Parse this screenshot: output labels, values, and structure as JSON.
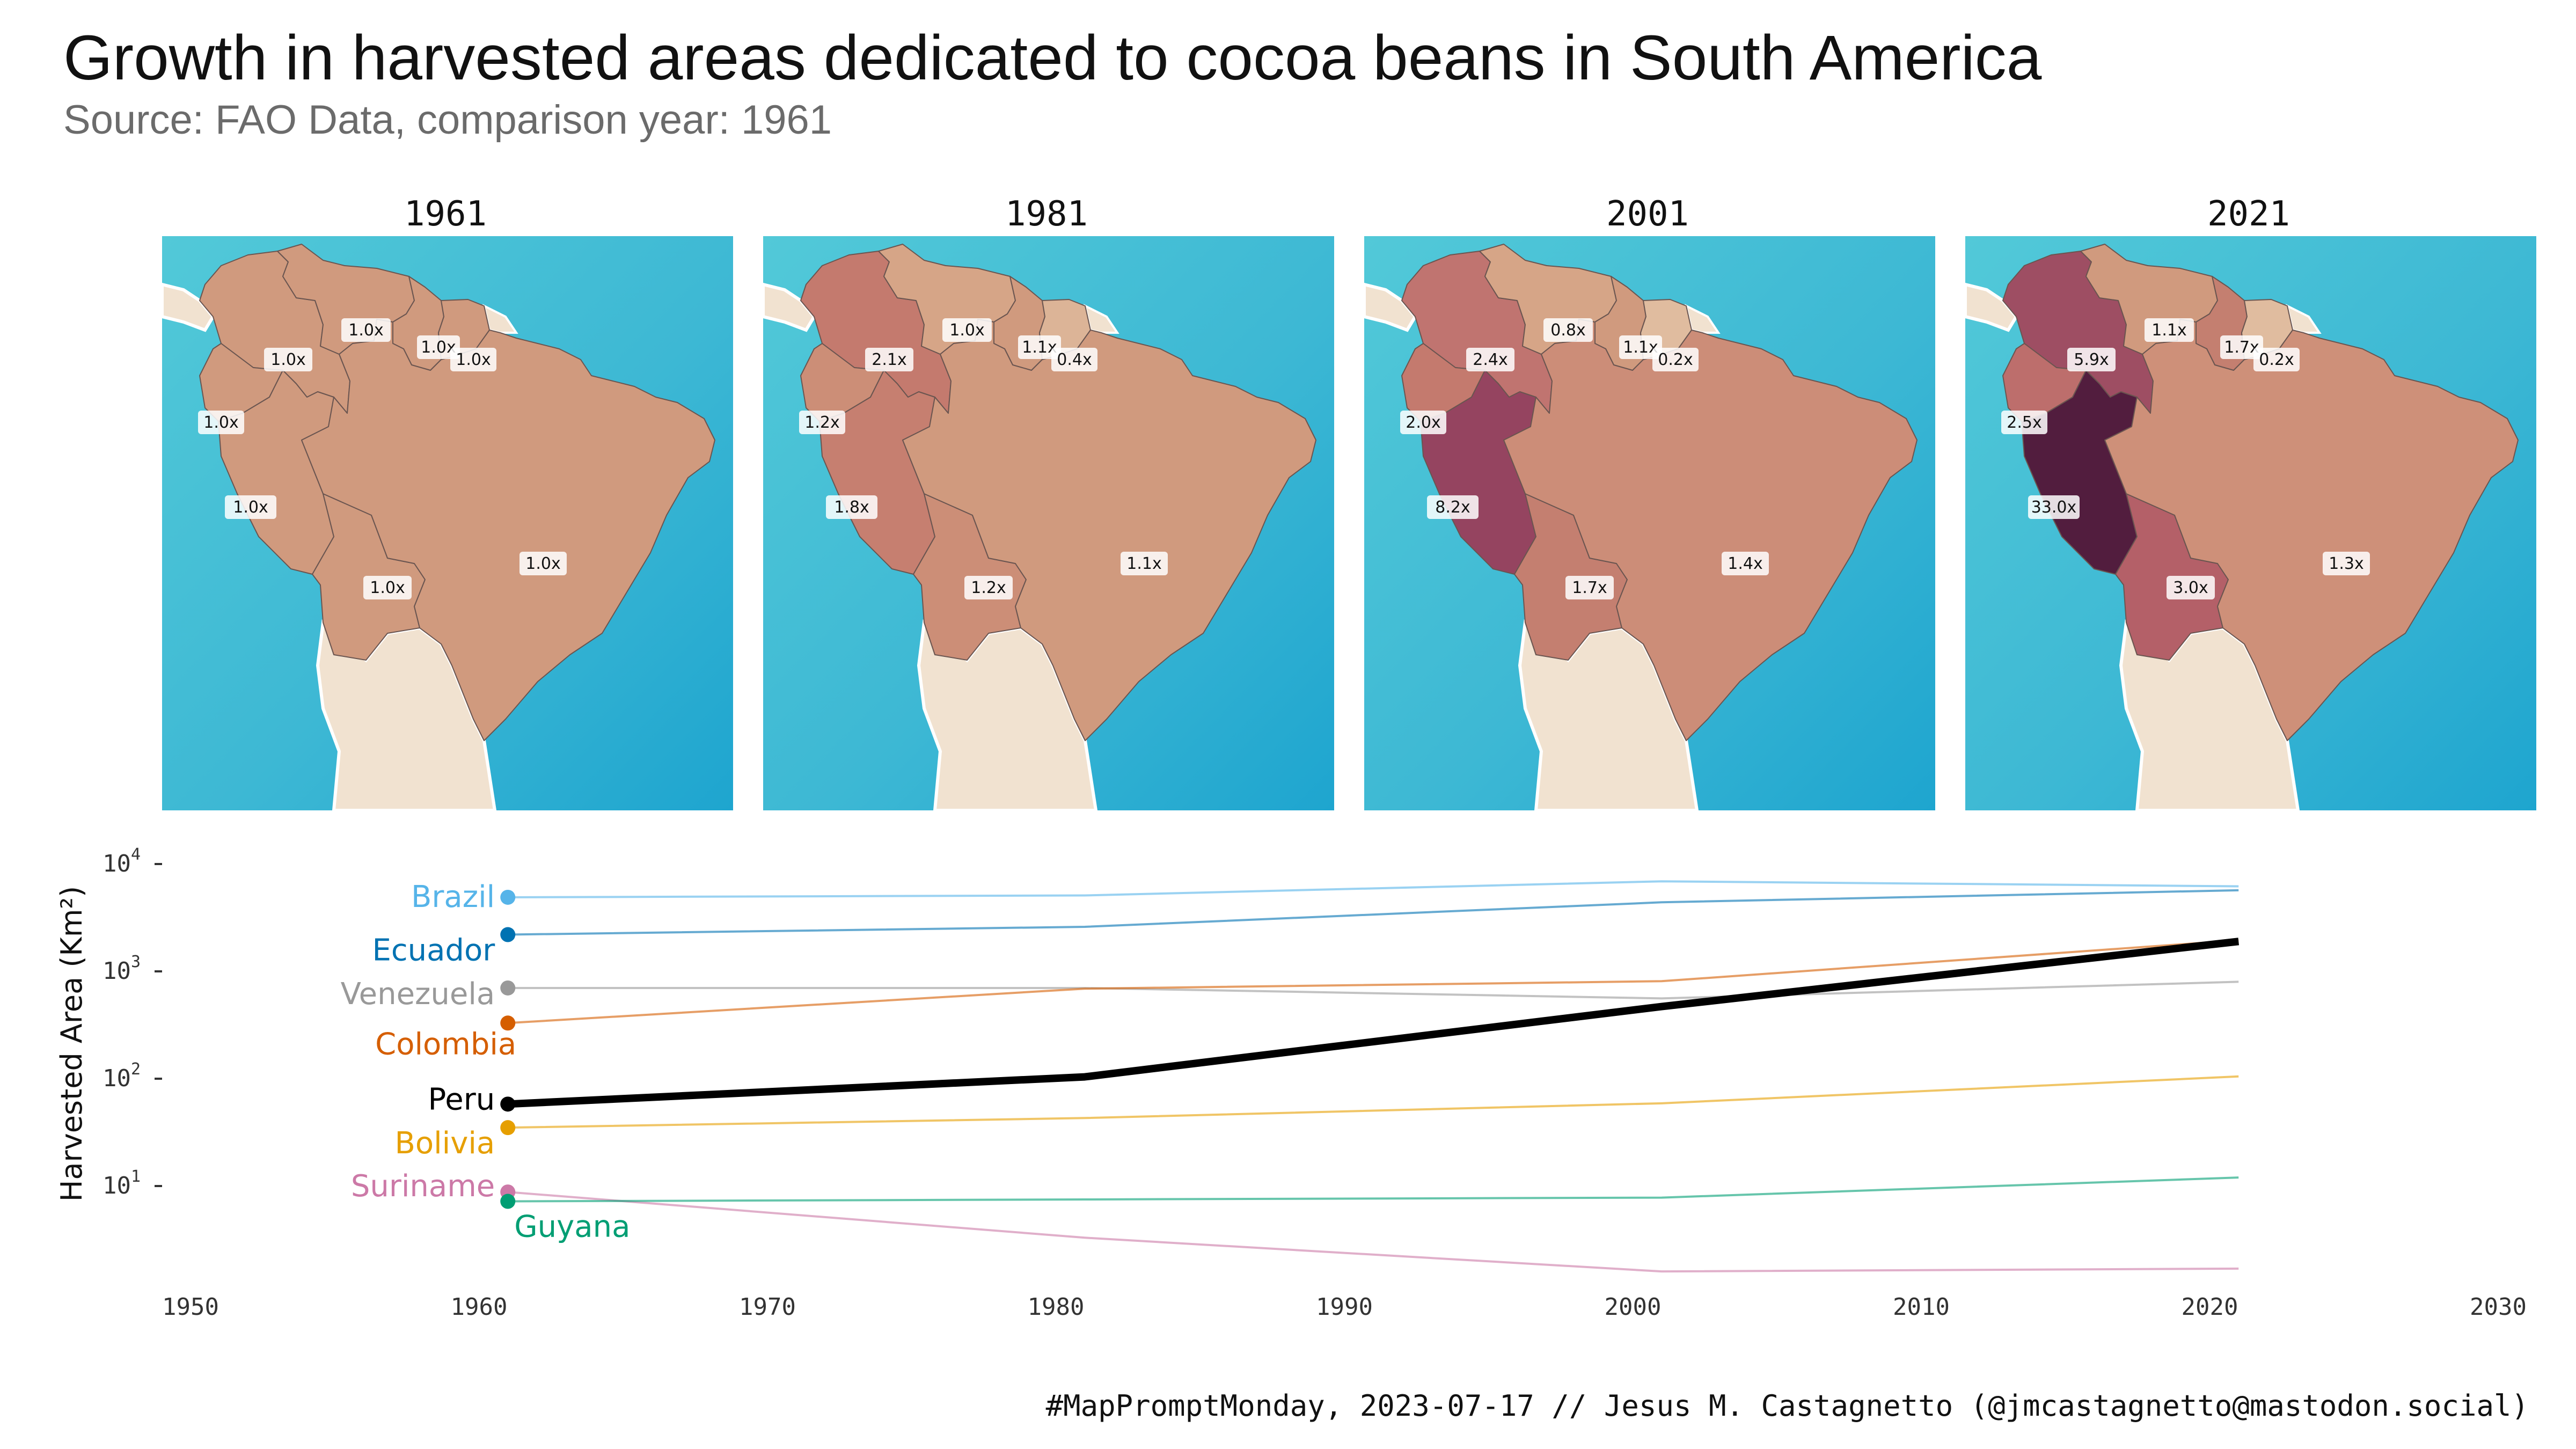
{
  "title": "Growth in harvested areas dedicated to cocoa beans in South America",
  "subtitle": "Source: FAO Data, comparison year: 1961",
  "caption": "#MapPromptMonday, 2023-07-17 // Jesus M. Castagnetto (@jmcastagnetto@mastodon.social)",
  "maps": [
    {
      "year": "1961",
      "regions": {
        "colombia": "1.0x",
        "venezuela": "1.0x",
        "guyana": "1.0x",
        "suriname": "1.0x",
        "ecuador": "1.0x",
        "peru": "1.0x",
        "bolivia": "1.0x",
        "brazil": "1.0x"
      },
      "fill": {
        "colombia": "#d09a7e",
        "venezuela": "#d09a7e",
        "guyana": "#d09a7e",
        "suriname": "#d09a7e",
        "ecuador": "#d09a7e",
        "peru": "#d09a7e",
        "bolivia": "#d09a7e",
        "brazil": "#d09a7e"
      }
    },
    {
      "year": "1981",
      "regions": {
        "colombia": "2.1x",
        "venezuela": "1.0x",
        "guyana": "1.1x",
        "suriname": "0.4x",
        "ecuador": "1.2x",
        "peru": "1.8x",
        "bolivia": "1.2x",
        "brazil": "1.1x"
      },
      "fill": {
        "colombia": "#c47a6e",
        "venezuela": "#d6a587",
        "guyana": "#d09a7e",
        "suriname": "#dcb497",
        "ecuador": "#cc8e77",
        "peru": "#c67f70",
        "bolivia": "#cc8e77",
        "brazil": "#d09a7e"
      }
    },
    {
      "year": "2001",
      "regions": {
        "colombia": "2.4x",
        "venezuela": "0.8x",
        "guyana": "1.1x",
        "suriname": "0.2x",
        "ecuador": "2.0x",
        "peru": "8.2x",
        "bolivia": "1.7x",
        "brazil": "1.4x"
      },
      "fill": {
        "colombia": "#c07470",
        "venezuela": "#d6a587",
        "guyana": "#d09a7e",
        "suriname": "#e0bc9f",
        "ecuador": "#c47a6e",
        "peru": "#954460",
        "bolivia": "#c47f70",
        "brazil": "#cc8d78"
      }
    },
    {
      "year": "2021",
      "regions": {
        "colombia": "5.9x",
        "venezuela": "1.1x",
        "guyana": "1.7x",
        "suriname": "0.2x",
        "ecuador": "2.5x",
        "peru": "33.0x",
        "bolivia": "3.0x",
        "brazil": "1.3x"
      },
      "fill": {
        "colombia": "#9e4e63",
        "venezuela": "#d09a7e",
        "guyana": "#c47f70",
        "suriname": "#e0bc9f",
        "ecuador": "#bd6e6c",
        "peru": "#521d3e",
        "bolivia": "#b46068",
        "brazil": "#ce9079"
      }
    }
  ],
  "chart_data": {
    "type": "line",
    "ylabel": "Harvested Area (Km²)",
    "xlabel": "",
    "x_ticks": [
      "1950",
      "1960",
      "1970",
      "1980",
      "1990",
      "2000",
      "2010",
      "2020",
      "2030"
    ],
    "y_ticks": [
      {
        "label": "10",
        "exp": "1",
        "value": 10
      },
      {
        "label": "10",
        "exp": "2",
        "value": 100
      },
      {
        "label": "10",
        "exp": "3",
        "value": 1000
      },
      {
        "label": "10",
        "exp": "4",
        "value": 10000
      }
    ],
    "xlim": [
      1950,
      2030
    ],
    "ylim_log10": [
      0.15,
      4.1
    ],
    "y_scale": "log10",
    "x": [
      1961,
      1981,
      2001,
      2021
    ],
    "series": [
      {
        "name": "Brazil",
        "color": "#56b4e9",
        "values": [
          4900,
          5100,
          6900,
          6200
        ],
        "bold": false
      },
      {
        "name": "Ecuador",
        "color": "#0072b2",
        "values": [
          2200,
          2600,
          4400,
          5700
        ],
        "bold": false
      },
      {
        "name": "Venezuela",
        "color": "#999999",
        "values": [
          700,
          700,
          560,
          800
        ],
        "bold": false
      },
      {
        "name": "Colombia",
        "color": "#d55e00",
        "values": [
          330,
          690,
          810,
          1950
        ],
        "bold": false
      },
      {
        "name": "Peru",
        "color": "#000000",
        "values": [
          58,
          104,
          470,
          1900
        ],
        "bold": true
      },
      {
        "name": "Bolivia",
        "color": "#e69f00",
        "values": [
          35,
          43,
          59,
          105
        ],
        "bold": false
      },
      {
        "name": "Suriname",
        "color": "#cc79a7",
        "values": [
          8.8,
          3.3,
          1.6,
          1.7
        ],
        "bold": false
      },
      {
        "name": "Guyana",
        "color": "#009e73",
        "values": [
          7.2,
          7.5,
          7.8,
          12
        ],
        "bold": false
      }
    ]
  }
}
